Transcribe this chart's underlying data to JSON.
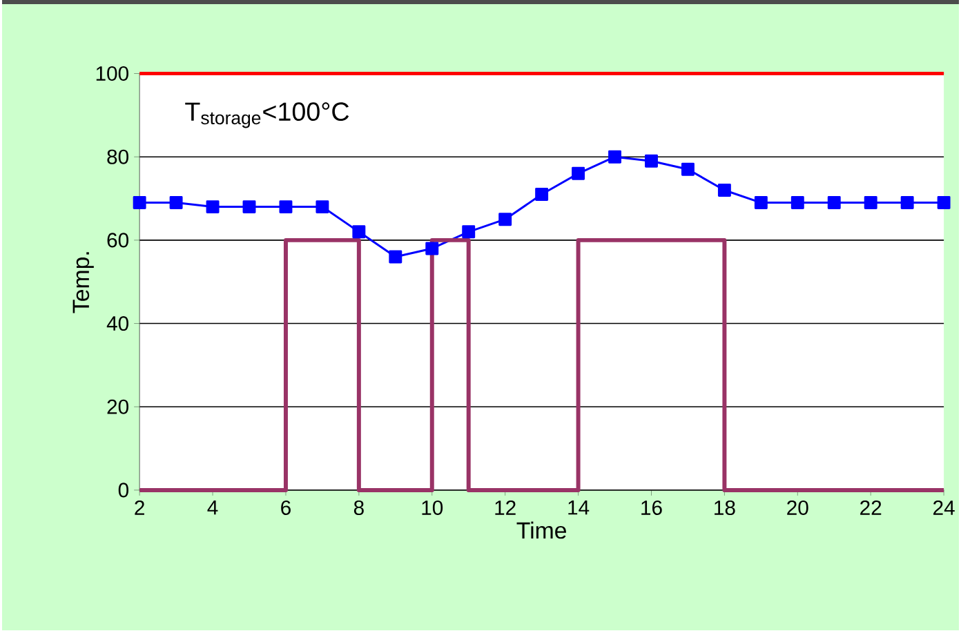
{
  "chart_data": {
    "type": "line",
    "xlabel": "Time",
    "ylabel": "Temp.",
    "xlim": [
      2,
      24
    ],
    "ylim": [
      0,
      100
    ],
    "xticks": [
      2,
      4,
      6,
      8,
      10,
      12,
      14,
      16,
      18,
      20,
      22,
      24
    ],
    "yticks": [
      0,
      20,
      40,
      60,
      80,
      100
    ],
    "grid": "y",
    "annotations": [
      "T$_{storage}$<100°C"
    ],
    "ref_lines": [
      {
        "axis": "y",
        "value": 100,
        "color": "#ff0000"
      }
    ],
    "series": [
      {
        "color": "#0000ff",
        "marker": "square",
        "x": [
          2,
          3,
          4,
          5,
          6,
          7,
          8,
          9,
          10,
          11,
          12,
          13,
          14,
          15,
          16,
          17,
          18,
          19,
          20,
          21,
          22,
          23,
          24
        ],
        "values": [
          69,
          69,
          68,
          68,
          68,
          68,
          62,
          56,
          58,
          62,
          65,
          71,
          76,
          80,
          79,
          77,
          72,
          69,
          69,
          69,
          69,
          69,
          69
        ]
      },
      {
        "color": "#993366",
        "marker": "none",
        "x": [
          2,
          6,
          6,
          8,
          8,
          10,
          10,
          11,
          11,
          14,
          14,
          18,
          18,
          24
        ],
        "values": [
          0,
          0,
          60,
          60,
          0,
          0,
          60,
          60,
          0,
          0,
          60,
          60,
          0,
          0
        ]
      }
    ]
  }
}
